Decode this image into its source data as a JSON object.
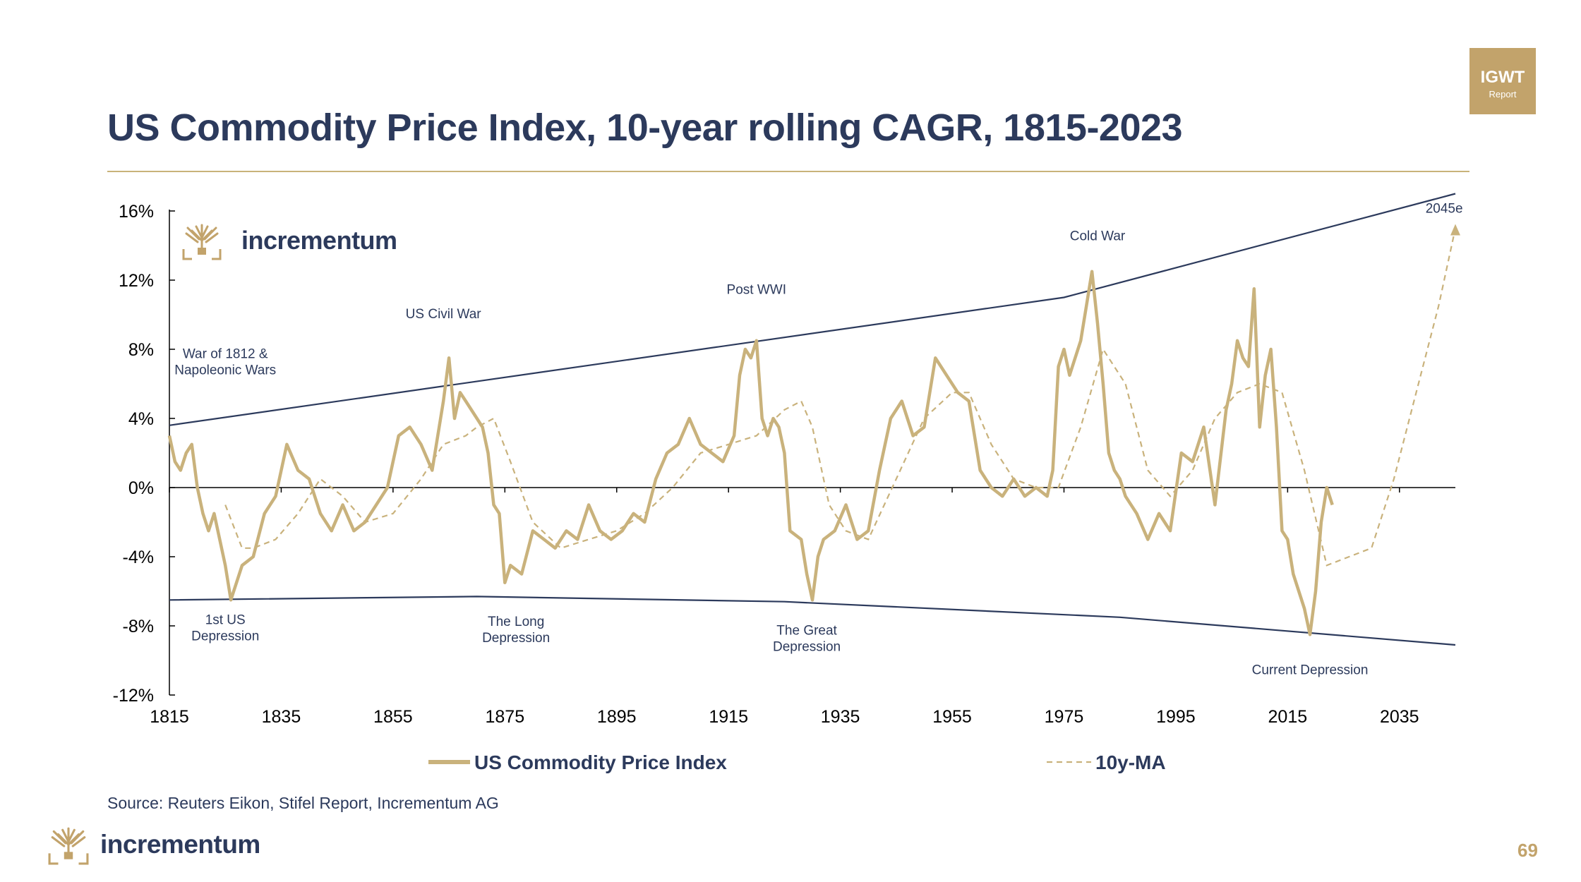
{
  "page": {
    "title": "US Commodity Price Index, 10-year rolling CAGR, 1815-2023",
    "badge": {
      "line1": "IGWT",
      "line2": "Report"
    },
    "source": "Source: Reuters Eikon, Stifel Report, Incrementum AG",
    "brand": "incrementum",
    "page_number": "69"
  },
  "colors": {
    "title": "#2c3a5c",
    "gold": "#c2a36b",
    "series_main": "#c9b27c",
    "series_ma": "#c9b27c",
    "trend": "#2c3a5c",
    "axis": "#000000"
  },
  "chart_data": {
    "type": "line",
    "title": "US Commodity Price Index, 10-year rolling CAGR, 1815-2023",
    "xlabel": "",
    "ylabel": "",
    "xlim": [
      1815,
      2045
    ],
    "ylim": [
      -12,
      16
    ],
    "x_ticks": [
      1815,
      1835,
      1855,
      1875,
      1895,
      1915,
      1935,
      1955,
      1975,
      1995,
      2015,
      2035
    ],
    "y_ticks": [
      -12,
      -8,
      -4,
      0,
      4,
      8,
      12,
      16
    ],
    "y_tick_labels": [
      "-12%",
      "-8%",
      "-4%",
      "0%",
      "4%",
      "8%",
      "12%",
      "16%"
    ],
    "grid": false,
    "legend_position": "bottom",
    "series": [
      {
        "name": "US Commodity Price Index",
        "style": "solid",
        "x": [
          1815,
          1816,
          1817,
          1818,
          1819,
          1820,
          1821,
          1822,
          1823,
          1824,
          1825,
          1826,
          1828,
          1830,
          1832,
          1834,
          1836,
          1838,
          1840,
          1842,
          1844,
          1846,
          1848,
          1850,
          1852,
          1854,
          1856,
          1858,
          1860,
          1862,
          1864,
          1865,
          1866,
          1867,
          1868,
          1870,
          1871,
          1872,
          1873,
          1874,
          1875,
          1876,
          1878,
          1880,
          1882,
          1884,
          1886,
          1888,
          1890,
          1892,
          1894,
          1896,
          1898,
          1900,
          1902,
          1904,
          1906,
          1908,
          1910,
          1912,
          1914,
          1916,
          1917,
          1918,
          1919,
          1920,
          1921,
          1922,
          1923,
          1924,
          1925,
          1926,
          1928,
          1929,
          1930,
          1931,
          1932,
          1934,
          1936,
          1938,
          1940,
          1942,
          1944,
          1946,
          1948,
          1950,
          1952,
          1954,
          1956,
          1958,
          1960,
          1962,
          1964,
          1966,
          1968,
          1970,
          1972,
          1973,
          1974,
          1975,
          1976,
          1978,
          1979,
          1980,
          1981,
          1982,
          1983,
          1984,
          1985,
          1986,
          1988,
          1990,
          1992,
          1994,
          1996,
          1998,
          2000,
          2002,
          2004,
          2005,
          2006,
          2007,
          2008,
          2009,
          2010,
          2011,
          2012,
          2013,
          2014,
          2015,
          2016,
          2017,
          2018,
          2019,
          2020,
          2021,
          2022,
          2023
        ],
        "y": [
          3.0,
          1.5,
          1.0,
          2.0,
          2.5,
          0.0,
          -1.5,
          -2.5,
          -1.5,
          -3.0,
          -4.5,
          -6.5,
          -4.5,
          -4.0,
          -1.5,
          -0.5,
          2.5,
          1.0,
          0.5,
          -1.5,
          -2.5,
          -1.0,
          -2.5,
          -2.0,
          -1.0,
          0.0,
          3.0,
          3.5,
          2.5,
          1.0,
          5.0,
          7.5,
          4.0,
          5.5,
          5.0,
          4.0,
          3.5,
          2.0,
          -1.0,
          -1.5,
          -5.5,
          -4.5,
          -5.0,
          -2.5,
          -3.0,
          -3.5,
          -2.5,
          -3.0,
          -1.0,
          -2.5,
          -3.0,
          -2.5,
          -1.5,
          -2.0,
          0.5,
          2.0,
          2.5,
          4.0,
          2.5,
          2.0,
          1.5,
          3.0,
          6.5,
          8.0,
          7.5,
          8.5,
          4.0,
          3.0,
          4.0,
          3.5,
          2.0,
          -2.5,
          -3.0,
          -5.0,
          -6.5,
          -4.0,
          -3.0,
          -2.5,
          -1.0,
          -3.0,
          -2.5,
          1.0,
          4.0,
          5.0,
          3.0,
          3.5,
          7.5,
          6.5,
          5.5,
          5.0,
          1.0,
          0.0,
          -0.5,
          0.5,
          -0.5,
          0.0,
          -0.5,
          1.0,
          7.0,
          8.0,
          6.5,
          8.5,
          10.5,
          12.5,
          9.5,
          6.0,
          2.0,
          1.0,
          0.5,
          -0.5,
          -1.5,
          -3.0,
          -1.5,
          -2.5,
          2.0,
          1.5,
          3.5,
          -1.0,
          4.5,
          6.0,
          8.5,
          7.5,
          7.0,
          11.5,
          3.5,
          6.5,
          8.0,
          3.5,
          -2.5,
          -3.0,
          -5.0,
          -6.0,
          -7.0,
          -8.5,
          -6.0,
          -2.0,
          0.0,
          -1.0
        ]
      },
      {
        "name": "10y-MA",
        "style": "dashed",
        "x": [
          1825,
          1828,
          1830,
          1834,
          1838,
          1842,
          1846,
          1850,
          1855,
          1860,
          1864,
          1868,
          1870,
          1873,
          1876,
          1880,
          1885,
          1890,
          1895,
          1900,
          1905,
          1910,
          1915,
          1920,
          1925,
          1928,
          1930,
          1933,
          1936,
          1940,
          1945,
          1950,
          1955,
          1958,
          1962,
          1966,
          1970,
          1974,
          1978,
          1982,
          1986,
          1990,
          1994,
          1998,
          2002,
          2006,
          2010,
          2014,
          2018,
          2022,
          2026,
          2030,
          2034,
          2038,
          2042,
          2045
        ],
        "y": [
          -1.0,
          -3.5,
          -3.5,
          -3.0,
          -1.5,
          0.5,
          -0.5,
          -2.0,
          -1.5,
          0.5,
          2.5,
          3.0,
          3.5,
          4.0,
          1.5,
          -2.0,
          -3.5,
          -3.0,
          -2.5,
          -1.5,
          0.0,
          2.0,
          2.5,
          3.0,
          4.5,
          5.0,
          3.5,
          -1.0,
          -2.5,
          -3.0,
          0.5,
          4.0,
          5.5,
          5.5,
          2.5,
          0.5,
          0.0,
          0.0,
          3.5,
          8.0,
          6.0,
          1.0,
          -0.5,
          1.0,
          4.0,
          5.5,
          6.0,
          5.5,
          1.0,
          -4.5,
          -4.0,
          -3.5,
          0.5,
          5.5,
          10.5,
          15.0
        ]
      }
    ],
    "trend_lines": [
      {
        "x": [
          1815,
          1975,
          2045
        ],
        "y": [
          3.6,
          11.0,
          17.0
        ]
      },
      {
        "x": [
          1815,
          1870,
          1925,
          1985,
          2045
        ],
        "y": [
          -6.5,
          -6.3,
          -6.6,
          -7.5,
          -9.1
        ]
      }
    ],
    "annotations": [
      {
        "text_lines": [
          "War of 1812 &",
          "Napoleonic Wars"
        ],
        "x": 1825,
        "y": 7.5
      },
      {
        "text_lines": [
          "US Civil War"
        ],
        "x": 1864,
        "y": 9.8
      },
      {
        "text_lines": [
          "Post WWI"
        ],
        "x": 1920,
        "y": 11.2
      },
      {
        "text_lines": [
          "Cold War"
        ],
        "x": 1981,
        "y": 14.3
      },
      {
        "text_lines": [
          "2045e"
        ],
        "x": 2043,
        "y": 15.9
      },
      {
        "text_lines": [
          "1st US",
          "Depression"
        ],
        "x": 1825,
        "y": -7.9
      },
      {
        "text_lines": [
          "The Long",
          "Depression"
        ],
        "x": 1877,
        "y": -8.0
      },
      {
        "text_lines": [
          "The Great",
          "Depression"
        ],
        "x": 1929,
        "y": -8.5
      },
      {
        "text_lines": [
          "Current Depression"
        ],
        "x": 2019,
        "y": -10.8
      }
    ]
  }
}
